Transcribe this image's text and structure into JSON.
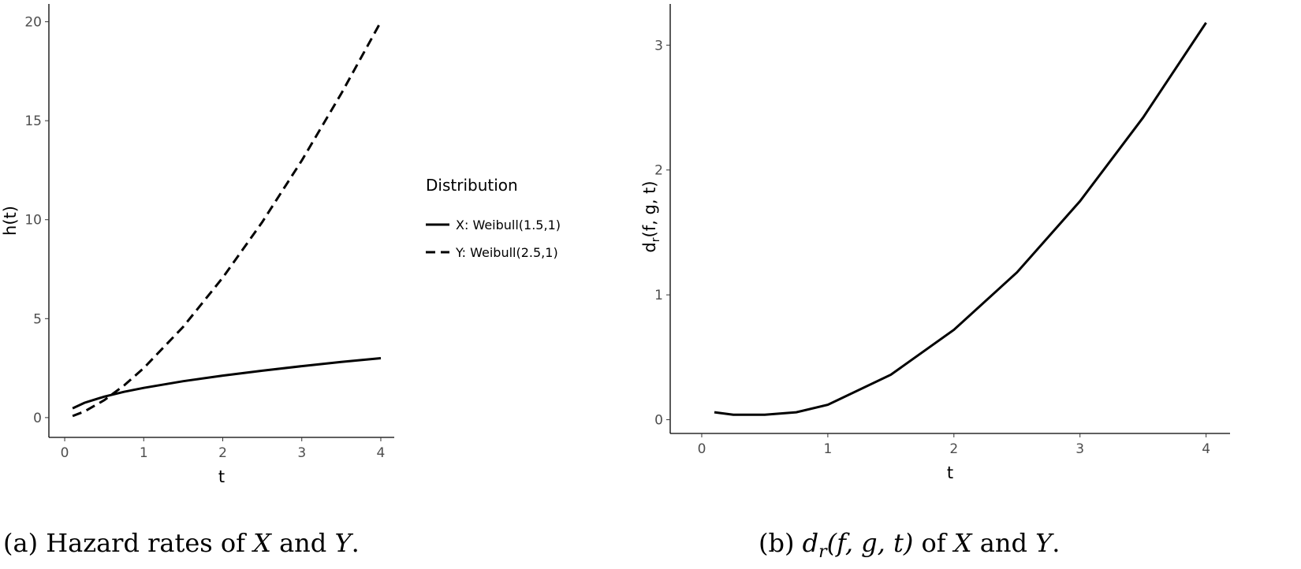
{
  "chart_data": [
    {
      "type": "line",
      "xlabel": "t",
      "ylabel": "h(t)",
      "x": [
        0.1,
        0.25,
        0.5,
        0.75,
        1,
        1.5,
        2,
        2.5,
        3,
        3.5,
        4
      ],
      "series": [
        {
          "name": "X: Weibull(1.5,1)",
          "color": "#000000",
          "linestyle": "solid",
          "values": [
            0.47,
            0.75,
            1.06,
            1.3,
            1.5,
            1.84,
            2.12,
            2.37,
            2.6,
            2.81,
            3.0
          ]
        },
        {
          "name": "Y: Weibull(2.5,1)",
          "color": "#000000",
          "linestyle": "dashed",
          "values": [
            0.08,
            0.31,
            0.88,
            1.62,
            2.5,
            4.59,
            7.07,
            9.88,
            12.99,
            16.37,
            20.0
          ]
        }
      ],
      "legend_title": "Distribution",
      "legend": "right",
      "xlim": [
        -0.2,
        4.17
      ],
      "ylim": [
        -1,
        20.9
      ],
      "xticks": [
        0,
        1,
        2,
        3,
        4
      ],
      "yticks": [
        0,
        5,
        10,
        15,
        20
      ],
      "caption": [
        "(a) Hazard rates of ",
        "X",
        " and ",
        "Y",
        "."
      ]
    },
    {
      "type": "line",
      "xlabel": "t",
      "ylabel": [
        "d",
        "r",
        "(f, g, t)"
      ],
      "x": [
        0.1,
        0.25,
        0.5,
        0.75,
        1,
        1.5,
        2,
        2.5,
        3,
        3.5,
        4
      ],
      "series": [
        {
          "color": "#000000",
          "linestyle": "solid",
          "values": [
            0.06,
            0.04,
            0.04,
            0.06,
            0.12,
            0.36,
            0.72,
            1.18,
            1.75,
            2.42,
            3.18
          ]
        }
      ],
      "xlim": [
        -0.25,
        4.19
      ],
      "ylim": [
        -0.11,
        3.33
      ],
      "xticks": [
        0,
        1,
        2,
        3,
        4
      ],
      "yticks": [
        0,
        1,
        2,
        3
      ],
      "caption": [
        "(b) ",
        "d",
        "r",
        "(f, g, t)",
        " of ",
        "X",
        " and ",
        "Y",
        "."
      ]
    }
  ]
}
